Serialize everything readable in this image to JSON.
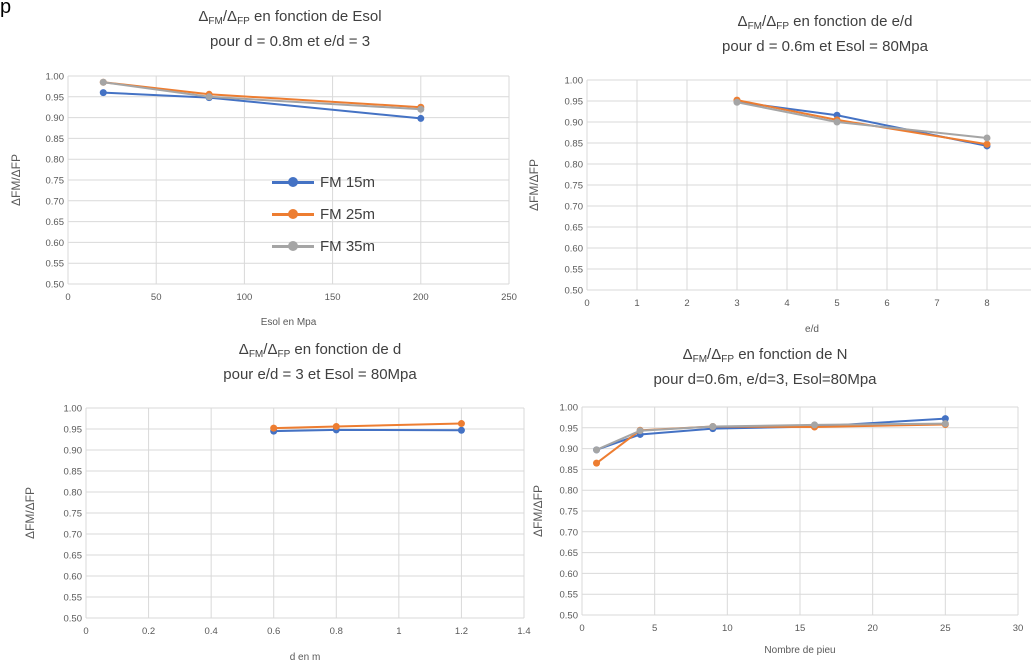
{
  "corner_text": "p",
  "colors": {
    "s15": "#4472C4",
    "s25": "#ED7D31",
    "s35": "#A5A5A5",
    "grid": "#D9D9D9",
    "text": "#595959"
  },
  "legend": [
    "FM 15m",
    "FM 25m",
    "FM 35m"
  ],
  "chart_data": [
    {
      "type": "line",
      "title_main": "en fonction de Esol",
      "subtitle": "pour d = 0.8m et e/d = 3",
      "xlabel": "Esol en Mpa",
      "ylabel": "ΔFM/ΔFP",
      "xlim": [
        0,
        250
      ],
      "xticks": [
        0,
        50,
        100,
        150,
        200,
        250
      ],
      "ylim": [
        0.5,
        1.0
      ],
      "yticks": [
        "0.50",
        "0.55",
        "0.60",
        "0.65",
        "0.70",
        "0.75",
        "0.80",
        "0.85",
        "0.90",
        "0.95",
        "1.00"
      ],
      "grid": "vertical",
      "series": [
        {
          "name": "FM 15m",
          "x": [
            20,
            80,
            200
          ],
          "y": [
            0.96,
            0.948,
            0.898
          ]
        },
        {
          "name": "FM 25m",
          "x": [
            20,
            80,
            200
          ],
          "y": [
            0.985,
            0.956,
            0.925
          ]
        },
        {
          "name": "FM 35m",
          "x": [
            20,
            80,
            200
          ],
          "y": [
            0.985,
            0.95,
            0.92
          ]
        }
      ]
    },
    {
      "type": "line",
      "title_main": "en fonction de e/d",
      "subtitle": "pour d = 0.6m et Esol = 80Mpa",
      "xlabel": "e/d",
      "ylabel": "ΔFM/ΔFP",
      "xlim": [
        0,
        9
      ],
      "xticks": [
        0,
        1,
        2,
        3,
        4,
        5,
        6,
        7,
        8
      ],
      "ylim": [
        0.5,
        1.0
      ],
      "yticks": [
        "0.50",
        "0.55",
        "0.60",
        "0.65",
        "0.70",
        "0.75",
        "0.80",
        "0.85",
        "0.90",
        "0.95",
        "1.00"
      ],
      "grid": "vertical",
      "series": [
        {
          "x": [
            3,
            5,
            8
          ],
          "y": [
            0.948,
            0.916,
            0.843
          ]
        },
        {
          "x": [
            3,
            5,
            8
          ],
          "y": [
            0.952,
            0.905,
            0.847
          ]
        },
        {
          "x": [
            3,
            5,
            8
          ],
          "y": [
            0.947,
            0.9,
            0.862
          ]
        }
      ]
    },
    {
      "type": "line",
      "title_main": "en fonction de d",
      "subtitle": "pour e/d = 3 et Esol = 80Mpa",
      "xlabel": "d en m",
      "ylabel": "ΔFM/ΔFP",
      "xlim": [
        0,
        1.4
      ],
      "xticks": [
        "0",
        "0.2",
        "0.4",
        "0.6",
        "0.8",
        "1",
        "1.2",
        "1.4"
      ],
      "ylim": [
        0.5,
        1.0
      ],
      "yticks": [
        "0.50",
        "0.55",
        "0.60",
        "0.65",
        "0.70",
        "0.75",
        "0.80",
        "0.85",
        "0.90",
        "0.95",
        "1.00"
      ],
      "grid": "vertical",
      "series": [
        {
          "x": [
            0.6,
            0.8,
            1.2
          ],
          "y": [
            0.945,
            0.948,
            0.947
          ]
        },
        {
          "x": [
            0.6,
            0.8,
            1.2
          ],
          "y": [
            0.952,
            0.956,
            0.963
          ]
        }
      ]
    },
    {
      "type": "line",
      "title_main": "en fonction de N",
      "subtitle": "pour d=0.6m, e/d=3, Esol=80Mpa",
      "xlabel": "Nombre de pieu",
      "ylabel": "ΔFM/ΔFP",
      "xlim": [
        0,
        30
      ],
      "xticks": [
        0,
        5,
        10,
        15,
        20,
        25,
        30
      ],
      "ylim": [
        0.5,
        1.0
      ],
      "yticks": [
        "0.50",
        "0.55",
        "0.60",
        "0.65",
        "0.70",
        "0.75",
        "0.80",
        "0.85",
        "0.90",
        "0.95",
        "1.00"
      ],
      "grid": "vertical",
      "series": [
        {
          "x": [
            1,
            4,
            9,
            16,
            25
          ],
          "y": [
            0.897,
            0.934,
            0.948,
            0.953,
            0.972
          ]
        },
        {
          "x": [
            1,
            4,
            9,
            16,
            25
          ],
          "y": [
            0.865,
            0.944,
            0.953,
            0.952,
            0.958
          ]
        },
        {
          "x": [
            1,
            4,
            9,
            16,
            25
          ],
          "y": [
            0.897,
            0.943,
            0.953,
            0.957,
            0.96
          ]
        }
      ]
    }
  ]
}
